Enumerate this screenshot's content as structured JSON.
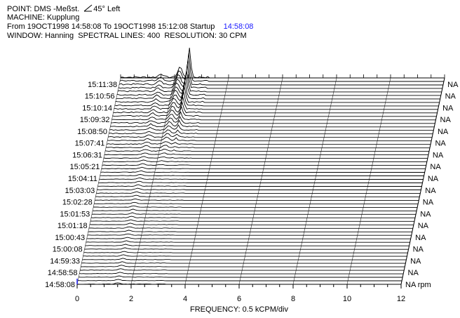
{
  "header": {
    "point_label": "POINT: DMS -Meßst.",
    "view_angle": "45° Left",
    "machine": "MACHINE: Kupplung",
    "range_text": "From 19OCT1998 14:58:08 To 19OCT1998 15:12:08 Startup",
    "startup_time": "14:58:08",
    "window_text": "WINDOW: Hanning  SPECTRAL LINES: 400  RESOLUTION: 30 CPM"
  },
  "chart_data": {
    "type": "waterfall",
    "xlabel": "FREQUENCY: 0.5 kCPM/div",
    "x_ticks": [
      "0",
      "2",
      "4",
      "6",
      "8",
      "10",
      "12"
    ],
    "xlim": [
      0,
      12
    ],
    "time_labels": [
      "14:58:08",
      "14:58:58",
      "14:59:33",
      "15:00:08",
      "15:00:43",
      "15:01:18",
      "15:01:53",
      "15:02:28",
      "15:03:03",
      "15:04:11",
      "15:05:21",
      "15:06:31",
      "15:07:41",
      "15:08:50",
      "15:09:32",
      "15:10:14",
      "15:10:56",
      "15:11:38"
    ],
    "rpm_labels": [
      "NA rpm",
      "NA",
      "NA",
      "NA",
      "NA",
      "NA",
      "NA",
      "NA",
      "NA",
      "NA",
      "NA",
      "NA",
      "NA",
      "NA",
      "NA",
      "NA",
      "NA",
      "NA"
    ],
    "trace_count": 60,
    "peaks": [
      {
        "x": 2.55,
        "amplitude_max": 1.0,
        "note": "dominant peak appears in late traces"
      },
      {
        "x": 2.2,
        "amplitude_max": 0.35
      },
      {
        "x": 1.5,
        "amplitude_max": 0.12
      }
    ],
    "grid": true
  }
}
